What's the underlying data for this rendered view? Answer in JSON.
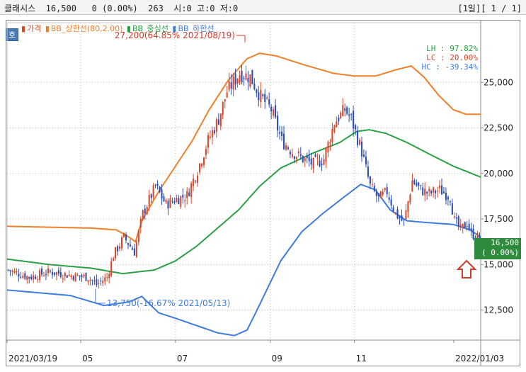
{
  "header": {
    "name": "클래시스",
    "price": "16,500",
    "change": "0 (0.00%)",
    "volume": "263",
    "open": "시:0",
    "high": "고:0",
    "low": "저:0",
    "period": "[1일]",
    "page": "[ 1 / 1]"
  },
  "mode_button": "호",
  "legend": {
    "price_label": "가격",
    "upper_label": "BB_상한선(80,2.00)",
    "mid_label": "BB_중심선",
    "lower_label": "BB_하한선"
  },
  "annotations": {
    "max_label": "27,200(64.85% 2021/08/19)",
    "min_label": "13,750(-16.67% 2021/05/13)"
  },
  "stats": {
    "lh": "LH :  97.82%",
    "lc": "LC :  20.00%",
    "hc": "HC : -39.34%"
  },
  "price_tag": {
    "value": "16,500",
    "change": "( 0.00%)"
  },
  "colors": {
    "up": "#d9482a",
    "down": "#2b4fb6",
    "upper_band": "#f07f2a",
    "mid_band": "#2aa044",
    "lower_band": "#3e7be0",
    "marker": "#d43a2a"
  },
  "chart_data": {
    "type": "candlestick",
    "y_ticks": [
      "25,000",
      "22,500",
      "20,000",
      "17,500",
      "15,000",
      "12,500"
    ],
    "y_tick_values": [
      25000,
      22500,
      20000,
      17500,
      15000,
      12500
    ],
    "ylim": [
      10850,
      27500
    ],
    "x_ticks": [
      "2021/03/19",
      "05",
      "07",
      "09",
      "11",
      "2022/01/03"
    ],
    "x_tick_index": [
      0,
      35,
      80,
      125,
      165,
      225
    ],
    "n_days": 225,
    "close_anchors": [
      [
        0,
        14700
      ],
      [
        10,
        14300
      ],
      [
        20,
        14600
      ],
      [
        30,
        14400
      ],
      [
        38,
        14300
      ],
      [
        42,
        13900
      ],
      [
        47,
        14300
      ],
      [
        50,
        15500
      ],
      [
        55,
        16500
      ],
      [
        60,
        15700
      ],
      [
        64,
        17800
      ],
      [
        70,
        19300
      ],
      [
        75,
        18300
      ],
      [
        80,
        18600
      ],
      [
        85,
        18800
      ],
      [
        90,
        20200
      ],
      [
        95,
        21800
      ],
      [
        100,
        23000
      ],
      [
        104,
        24500
      ],
      [
        110,
        25500
      ],
      [
        115,
        25300
      ],
      [
        120,
        24200
      ],
      [
        125,
        23500
      ],
      [
        130,
        21800
      ],
      [
        135,
        21200
      ],
      [
        140,
        20800
      ],
      [
        145,
        20500
      ],
      [
        150,
        20800
      ],
      [
        155,
        22800
      ],
      [
        160,
        23500
      ],
      [
        163,
        23000
      ],
      [
        168,
        21200
      ],
      [
        172,
        19300
      ],
      [
        176,
        18600
      ],
      [
        180,
        19000
      ],
      [
        184,
        17800
      ],
      [
        188,
        17300
      ],
      [
        192,
        19600
      ],
      [
        196,
        19100
      ],
      [
        200,
        18900
      ],
      [
        205,
        19100
      ],
      [
        210,
        18700
      ],
      [
        212,
        17400
      ],
      [
        215,
        16900
      ],
      [
        218,
        17300
      ],
      [
        220,
        16700
      ],
      [
        223,
        16500
      ],
      [
        225,
        16500
      ]
    ],
    "upper_anchors": [
      [
        0,
        17100
      ],
      [
        40,
        17000
      ],
      [
        52,
        16900
      ],
      [
        58,
        16500
      ],
      [
        61,
        16250
      ],
      [
        64,
        17400
      ],
      [
        68,
        18200
      ],
      [
        72,
        19000
      ],
      [
        80,
        20400
      ],
      [
        88,
        21800
      ],
      [
        96,
        23500
      ],
      [
        105,
        25100
      ],
      [
        114,
        26300
      ],
      [
        120,
        26600
      ],
      [
        128,
        26450
      ],
      [
        140,
        26000
      ],
      [
        155,
        25500
      ],
      [
        165,
        25350
      ],
      [
        175,
        25350
      ],
      [
        185,
        25700
      ],
      [
        192,
        25900
      ],
      [
        198,
        25300
      ],
      [
        205,
        24300
      ],
      [
        212,
        23500
      ],
      [
        218,
        23250
      ],
      [
        225,
        23250
      ]
    ],
    "mid_anchors": [
      [
        0,
        15300
      ],
      [
        20,
        15000
      ],
      [
        40,
        14800
      ],
      [
        55,
        14500
      ],
      [
        70,
        14700
      ],
      [
        80,
        15200
      ],
      [
        90,
        16000
      ],
      [
        100,
        17000
      ],
      [
        110,
        18000
      ],
      [
        120,
        19300
      ],
      [
        130,
        20300
      ],
      [
        145,
        21100
      ],
      [
        158,
        21700
      ],
      [
        166,
        22300
      ],
      [
        172,
        22400
      ],
      [
        180,
        22200
      ],
      [
        190,
        21700
      ],
      [
        200,
        21100
      ],
      [
        212,
        20400
      ],
      [
        225,
        19800
      ]
    ],
    "lower_anchors": [
      [
        0,
        13600
      ],
      [
        30,
        13300
      ],
      [
        46,
        12750
      ],
      [
        58,
        12950
      ],
      [
        64,
        13250
      ],
      [
        72,
        12350
      ],
      [
        80,
        12050
      ],
      [
        90,
        11650
      ],
      [
        100,
        11250
      ],
      [
        108,
        11100
      ],
      [
        114,
        11400
      ],
      [
        120,
        12800
      ],
      [
        130,
        15200
      ],
      [
        140,
        16800
      ],
      [
        150,
        17800
      ],
      [
        160,
        18700
      ],
      [
        168,
        19400
      ],
      [
        175,
        19100
      ],
      [
        182,
        18000
      ],
      [
        190,
        17400
      ],
      [
        200,
        17300
      ],
      [
        212,
        17200
      ],
      [
        220,
        16900
      ],
      [
        225,
        16500
      ]
    ],
    "max_point": {
      "index": 113,
      "value": 27200
    },
    "min_point": {
      "index": 42,
      "value": 13750
    },
    "stats": {
      "LH": "97.82%",
      "LC": "20.00%",
      "HC": "-39.34%"
    }
  }
}
